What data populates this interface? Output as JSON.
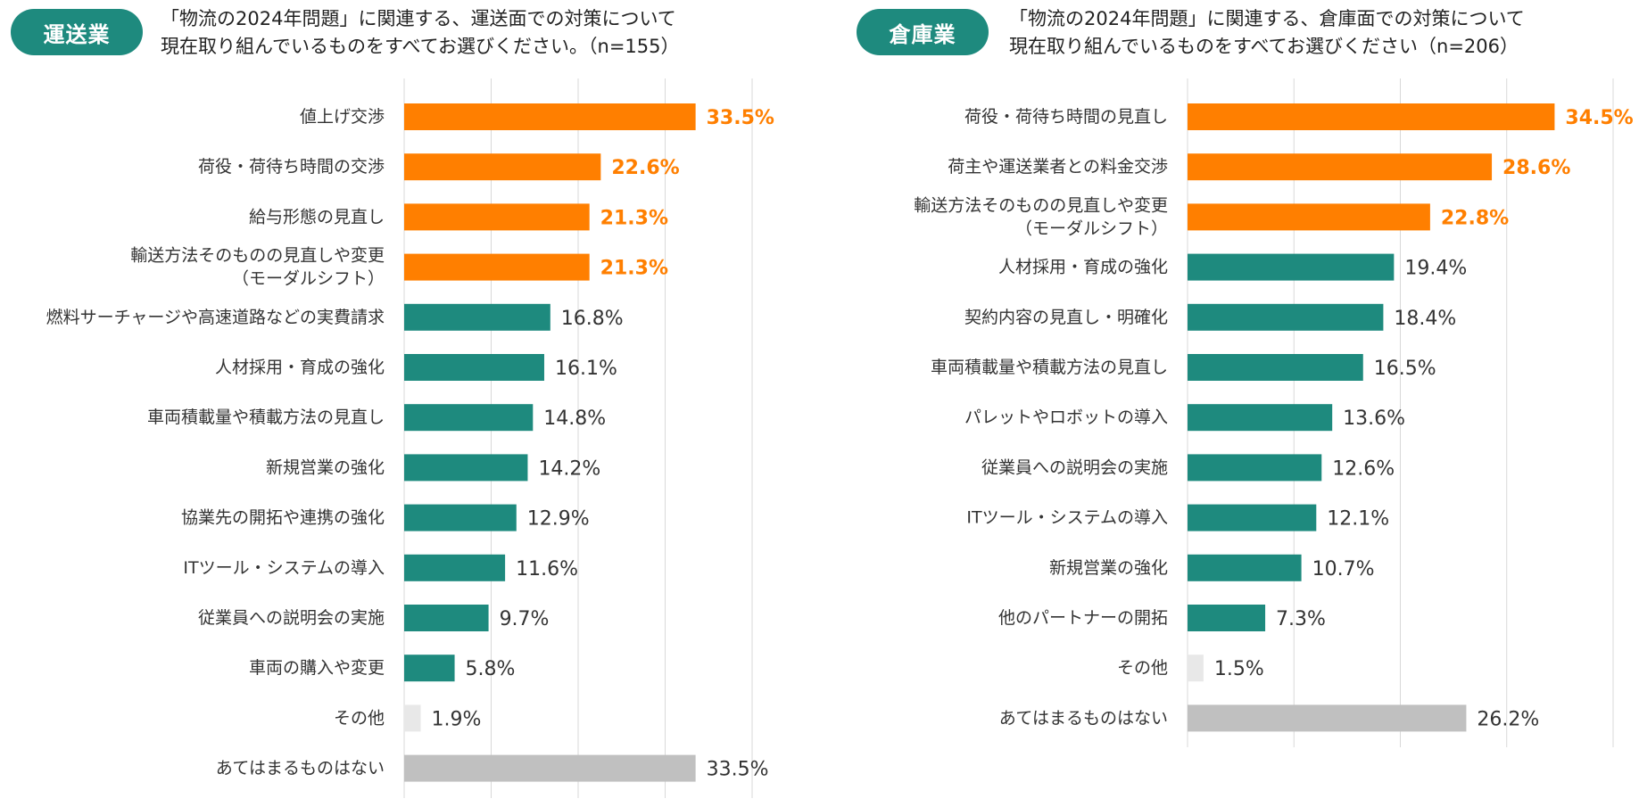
{
  "colors": {
    "badge": "#1e8a7e",
    "highlight": "#ff7f00",
    "teal": "#1e8a7e",
    "other": "#e8e8e8",
    "none": "#c0c0c0",
    "grid": "#d9d9d9"
  },
  "left": {
    "badge": "運送業",
    "title_line1": "「物流の2024年問題」に関連する、運送面での対策について",
    "title_line2": "現在取り組んでいるものをすべてお選びください。（n=155）"
  },
  "right": {
    "badge": "倉庫業",
    "title_line1": "「物流の2024年問題」に関連する、倉庫面での対策について",
    "title_line2": "現在取り組んでいるものをすべてお選びください（n=206）"
  },
  "chart_data": [
    {
      "type": "bar",
      "orientation": "horizontal",
      "title": "「物流の2024年問題」に関連する、運送面での対策について 現在取り組んでいるものをすべてお選びください。（n=155）",
      "xlim": [
        0,
        40
      ],
      "categories": [
        [
          "値上げ交渉"
        ],
        [
          "荷役・荷待ち時間の交渉"
        ],
        [
          "給与形態の見直し"
        ],
        [
          "輸送方法そのものの見直しや変更",
          "（モーダルシフト）"
        ],
        [
          "燃料サーチャージや高速道路などの実費請求"
        ],
        [
          "人材採用・育成の強化"
        ],
        [
          "車両積載量や積載方法の見直し"
        ],
        [
          "新規営業の強化"
        ],
        [
          "協業先の開拓や連携の強化"
        ],
        [
          "ITツール・システムの導入"
        ],
        [
          "従業員への説明会の実施"
        ],
        [
          "車両の購入や変更"
        ],
        [
          "その他"
        ],
        [
          "あてはまるものはない"
        ]
      ],
      "values": [
        33.5,
        22.6,
        21.3,
        21.3,
        16.8,
        16.1,
        14.8,
        14.2,
        12.9,
        11.6,
        9.7,
        5.8,
        1.9,
        33.5
      ],
      "labels": [
        "33.5%",
        "22.6%",
        "21.3%",
        "21.3%",
        "16.8%",
        "16.1%",
        "14.8%",
        "14.2%",
        "12.9%",
        "11.6%",
        "9.7%",
        "5.8%",
        "1.9%",
        "33.5%"
      ],
      "kinds": [
        "top",
        "top",
        "top",
        "top",
        "normal",
        "normal",
        "normal",
        "normal",
        "normal",
        "normal",
        "normal",
        "normal",
        "other",
        "none"
      ]
    },
    {
      "type": "bar",
      "orientation": "horizontal",
      "title": "「物流の2024年問題」に関連する、倉庫面での対策について 現在取り組んでいるものをすべてお選びください（n=206）",
      "xlim": [
        0,
        40
      ],
      "categories": [
        [
          "荷役・荷待ち時間の見直し"
        ],
        [
          "荷主や運送業者との料金交渉"
        ],
        [
          "輸送方法そのものの見直しや変更",
          "（モーダルシフト）"
        ],
        [
          "人材採用・育成の強化"
        ],
        [
          "契約内容の見直し・明確化"
        ],
        [
          "車両積載量や積載方法の見直し"
        ],
        [
          "パレットやロボットの導入"
        ],
        [
          "従業員への説明会の実施"
        ],
        [
          "ITツール・システムの導入"
        ],
        [
          "新規営業の強化"
        ],
        [
          "他のパートナーの開拓"
        ],
        [
          "その他"
        ],
        [
          "あてはまるものはない"
        ]
      ],
      "values": [
        34.5,
        28.6,
        22.8,
        19.4,
        18.4,
        16.5,
        13.6,
        12.6,
        12.1,
        10.7,
        7.3,
        1.5,
        26.2
      ],
      "labels": [
        "34.5%",
        "28.6%",
        "22.8%",
        "19.4%",
        "18.4%",
        "16.5%",
        "13.6%",
        "12.6%",
        "12.1%",
        "10.7%",
        "7.3%",
        "1.5%",
        "26.2%"
      ],
      "kinds": [
        "top",
        "top",
        "top",
        "normal",
        "normal",
        "normal",
        "normal",
        "normal",
        "normal",
        "normal",
        "normal",
        "other",
        "none"
      ]
    }
  ]
}
